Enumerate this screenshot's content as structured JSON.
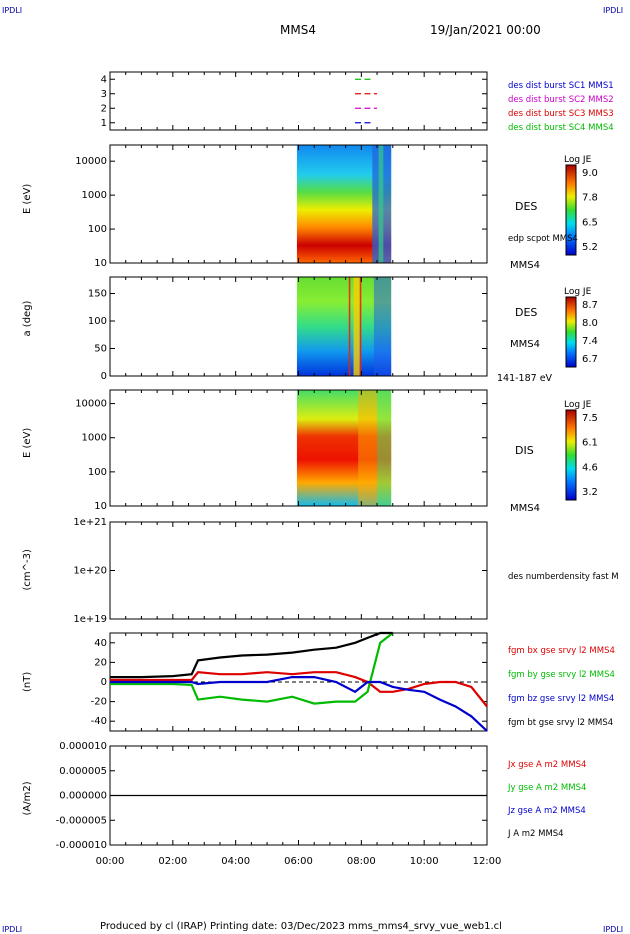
{
  "corner_label": "IPDLI",
  "header": {
    "spacecraft": "MMS4",
    "date": "19/Jan/2021 00:00"
  },
  "footer": "Produced by cl (IRAP)    Printing date: 03/Dec/2023    mms_mms4_srvy_vue_web1.cl",
  "colors": {
    "mms1": "#0000cc",
    "mms2": "#cc00cc",
    "mms3": "#dd0000",
    "mms4": "#00bb00",
    "black": "#000000"
  },
  "time_axis": {
    "ticks": [
      "00:00",
      "02:00",
      "04:00",
      "06:00",
      "08:00",
      "10:00",
      "12:00"
    ],
    "range_hours": [
      0,
      12
    ]
  },
  "chart_data": [
    {
      "type": "scatter",
      "panel": "burst-availability",
      "ylim": [
        0.5,
        4.5
      ],
      "yticks": [
        "1",
        "2",
        "3",
        "4"
      ],
      "legend": [
        {
          "label": "des dist burst SC1 MMS1",
          "color": "#0000cc"
        },
        {
          "label": "des dist burst SC2 MMS2",
          "color": "#cc00cc"
        },
        {
          "label": "des dist burst SC3 MMS3",
          "color": "#dd0000"
        },
        {
          "label": "des dist burst SC4 MMS4",
          "color": "#00bb00"
        }
      ],
      "series": [
        {
          "sc": 1,
          "color": "#0000cc",
          "intervals": [
            [
              7.8,
              8.0
            ],
            [
              8.1,
              8.3
            ]
          ]
        },
        {
          "sc": 2,
          "color": "#cc00cc",
          "intervals": [
            [
              7.8,
              8.0
            ],
            [
              8.1,
              8.3
            ],
            [
              8.4,
              8.5
            ]
          ]
        },
        {
          "sc": 3,
          "color": "#dd0000",
          "intervals": [
            [
              7.8,
              8.0
            ],
            [
              8.1,
              8.3
            ],
            [
              8.4,
              8.5
            ]
          ]
        },
        {
          "sc": 4,
          "color": "#00bb00",
          "intervals": [
            [
              7.8,
              8.0
            ],
            [
              8.1,
              8.4
            ]
          ]
        }
      ]
    },
    {
      "type": "heatmap",
      "panel": "des-energy",
      "ylabel": "E (eV)",
      "log_y": true,
      "ylim": [
        10,
        30000
      ],
      "yticks": [
        "10",
        "100",
        "1000",
        "10000"
      ],
      "label": "DES",
      "extra_label": "edp scpot MMS4",
      "sc_label": "MMS4",
      "colorbar": {
        "title": "Log JE",
        "ticks": [
          "9.0",
          "7.8",
          "6.5",
          "5.2"
        ]
      },
      "data_extent_hours": [
        5.95,
        8.95
      ]
    },
    {
      "type": "heatmap",
      "panel": "des-pitch-angle",
      "ylabel": "a (deg)",
      "ylim": [
        0,
        180
      ],
      "yticks": [
        "0",
        "50",
        "100",
        "150"
      ],
      "label": "DES",
      "sc_label": "MMS4",
      "energy_label": "141-187 eV",
      "colorbar": {
        "title": "Log JE",
        "ticks": [
          "8.7",
          "8.0",
          "7.4",
          "6.7"
        ]
      },
      "data_extent_hours": [
        5.95,
        8.95
      ]
    },
    {
      "type": "heatmap",
      "panel": "dis-energy",
      "ylabel": "E (eV)",
      "log_y": true,
      "ylim": [
        10,
        25000
      ],
      "yticks": [
        "10",
        "100",
        "1000",
        "10000"
      ],
      "label": "DIS",
      "sc_label": "MMS4",
      "colorbar": {
        "title": "Log JE",
        "ticks": [
          "7.5",
          "6.1",
          "4.6",
          "3.2"
        ]
      },
      "data_extent_hours": [
        5.95,
        8.95
      ]
    },
    {
      "type": "line",
      "panel": "density",
      "ylabel": "(cm^-3)",
      "log_y": true,
      "ylim": [
        1e+19,
        1e+21
      ],
      "yticks": [
        "1e+19",
        "1e+20",
        "1e+21"
      ],
      "legend": [
        {
          "label": "des numberdensity fast M",
          "color": "#000000"
        }
      ],
      "series": []
    },
    {
      "type": "line",
      "panel": "fgm",
      "ylabel": "(nT)",
      "ylim": [
        -50,
        50
      ],
      "yticks": [
        "-40",
        "-20",
        "0",
        "20",
        "40"
      ],
      "legend": [
        {
          "label": "fgm bx gse srvy l2 MMS4",
          "color": "#dd0000"
        },
        {
          "label": "fgm by gse srvy l2 MMS4",
          "color": "#00bb00"
        },
        {
          "label": "fgm bz gse srvy l2 MMS4",
          "color": "#0000cc"
        },
        {
          "label": "fgm bt gse srvy l2 MMS4",
          "color": "#000000"
        }
      ],
      "x": [
        0,
        1,
        2,
        2.6,
        2.8,
        3.5,
        4.2,
        5.0,
        5.8,
        6.5,
        7.2,
        7.8,
        8.2,
        8.6,
        9.0,
        9.5,
        10.0,
        10.5,
        11.0,
        11.5,
        12.0
      ],
      "series": [
        {
          "name": "bx",
          "color": "#dd0000",
          "values": [
            2,
            2,
            2,
            2,
            10,
            8,
            8,
            10,
            8,
            10,
            10,
            5,
            0,
            -10,
            -10,
            -7,
            -2,
            0,
            0,
            -5,
            -25
          ]
        },
        {
          "name": "by",
          "color": "#00bb00",
          "values": [
            -2,
            -2,
            -2,
            -3,
            -18,
            -15,
            -18,
            -20,
            -15,
            -22,
            -20,
            -20,
            -10,
            40,
            50,
            null,
            null,
            null,
            null,
            null,
            null
          ]
        },
        {
          "name": "bz",
          "color": "#0000cc",
          "values": [
            0,
            0,
            0,
            0,
            -2,
            0,
            0,
            0,
            5,
            5,
            0,
            -10,
            0,
            0,
            -5,
            -8,
            -10,
            -18,
            -25,
            -35,
            -50
          ]
        },
        {
          "name": "bt",
          "color": "#000000",
          "values": [
            5,
            5,
            6,
            8,
            22,
            25,
            27,
            28,
            30,
            33,
            35,
            40,
            45,
            50,
            50,
            null,
            null,
            null,
            null,
            null,
            null
          ]
        }
      ]
    },
    {
      "type": "line",
      "panel": "current-density",
      "ylabel": "(A/m2)",
      "ylim": [
        -1e-05,
        1e-05
      ],
      "yticks": [
        "0.000010",
        "0.000005",
        "0.000000",
        "-0.000005",
        "-0.000010"
      ],
      "legend": [
        {
          "label": "Jx gse A m2 MMS4",
          "color": "#dd0000"
        },
        {
          "label": "Jy gse A m2 MMS4",
          "color": "#00bb00"
        },
        {
          "label": "Jz gse A m2 MMS4",
          "color": "#0000cc"
        },
        {
          "label": "J A m2 MMS4",
          "color": "#000000"
        }
      ]
    }
  ]
}
